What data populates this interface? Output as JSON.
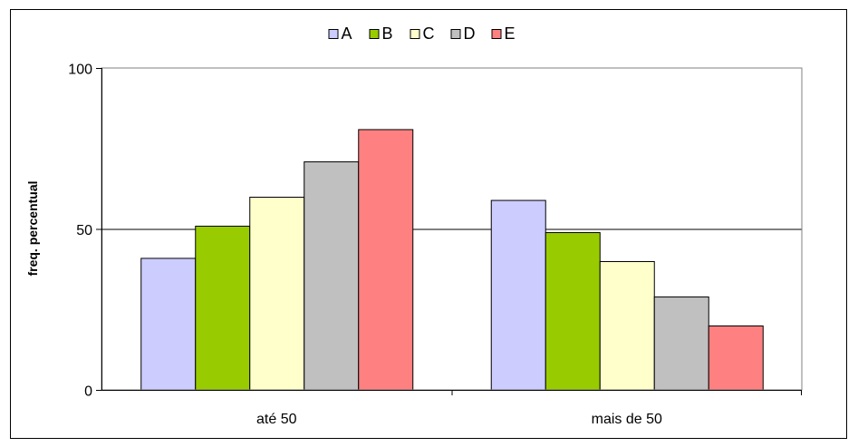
{
  "chart_data": {
    "type": "bar",
    "title": "",
    "xlabel": "",
    "ylabel": "freq. percentual",
    "ylim": [
      0,
      100
    ],
    "yticks": [
      0,
      50,
      100
    ],
    "categories": [
      "até 50",
      "mais de 50"
    ],
    "series": [
      {
        "name": "A",
        "color": "#ccccff",
        "values": [
          41,
          59
        ]
      },
      {
        "name": "B",
        "color": "#99cc00",
        "values": [
          51,
          49
        ]
      },
      {
        "name": "C",
        "color": "#ffffcc",
        "values": [
          60,
          40
        ]
      },
      {
        "name": "D",
        "color": "#c0c0c0",
        "values": [
          71,
          29
        ]
      },
      {
        "name": "E",
        "color": "#ff8080",
        "values": [
          81,
          20
        ]
      }
    ],
    "grid": {
      "horizontal": true,
      "vertical": false
    },
    "legend_position": "top-center"
  }
}
